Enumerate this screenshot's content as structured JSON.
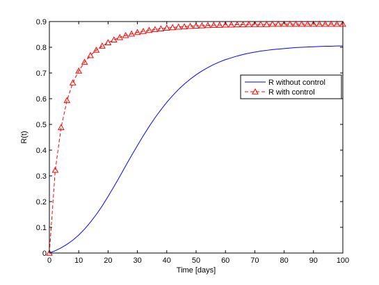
{
  "chart_data": {
    "type": "line",
    "title": "",
    "xlabel": "Time [days]",
    "ylabel": "R(t)",
    "xlim": [
      0,
      100
    ],
    "ylim": [
      0,
      0.9
    ],
    "xticks": [
      0,
      10,
      20,
      30,
      40,
      50,
      60,
      70,
      80,
      90,
      100
    ],
    "yticks": [
      0,
      0.1,
      0.2,
      0.3,
      0.4,
      0.5,
      0.6,
      0.7,
      0.8,
      0.9
    ],
    "xtick_labels": [
      "0",
      "10",
      "20",
      "30",
      "40",
      "50",
      "60",
      "70",
      "80",
      "90",
      "100"
    ],
    "ytick_labels": [
      "0",
      "0.1",
      "0.2",
      "0.3",
      "0.4",
      "0.5",
      "0.6",
      "0.7",
      "0.8",
      "0.9"
    ],
    "grid": false,
    "legend_position": "right",
    "series": [
      {
        "name": "R without control",
        "color": "#0000ff",
        "line_style": "solid",
        "marker": "none",
        "x": [
          0,
          2,
          4,
          6,
          8,
          10,
          12,
          14,
          16,
          18,
          20,
          22,
          24,
          26,
          28,
          30,
          32,
          34,
          36,
          38,
          40,
          42,
          44,
          46,
          48,
          50,
          52,
          54,
          56,
          58,
          60,
          62,
          64,
          66,
          68,
          70,
          72,
          74,
          76,
          78,
          80,
          82,
          84,
          86,
          88,
          90,
          92,
          94,
          96,
          98,
          100
        ],
        "y": [
          0,
          0.009,
          0.02,
          0.034,
          0.05,
          0.07,
          0.093,
          0.12,
          0.15,
          0.183,
          0.22,
          0.258,
          0.298,
          0.339,
          0.379,
          0.418,
          0.456,
          0.492,
          0.526,
          0.557,
          0.586,
          0.612,
          0.636,
          0.657,
          0.676,
          0.693,
          0.708,
          0.721,
          0.733,
          0.743,
          0.752,
          0.759,
          0.766,
          0.772,
          0.777,
          0.781,
          0.785,
          0.788,
          0.791,
          0.793,
          0.795,
          0.797,
          0.799,
          0.8,
          0.801,
          0.802,
          0.803,
          0.804,
          0.804,
          0.805,
          0.805
        ]
      },
      {
        "name": "R with control",
        "color": "#ff0000",
        "line_style": "dashed",
        "marker": "triangle",
        "x": [
          0,
          2,
          4,
          6,
          8,
          10,
          12,
          14,
          16,
          18,
          20,
          22,
          24,
          26,
          28,
          30,
          32,
          34,
          36,
          38,
          40,
          42,
          44,
          46,
          48,
          50,
          52,
          54,
          56,
          58,
          60,
          62,
          64,
          66,
          68,
          70,
          72,
          74,
          76,
          78,
          80,
          82,
          84,
          86,
          88,
          90,
          92,
          94,
          96,
          98,
          100
        ],
        "y": [
          0,
          0.322,
          0.488,
          0.593,
          0.662,
          0.708,
          0.742,
          0.768,
          0.789,
          0.805,
          0.818,
          0.829,
          0.838,
          0.846,
          0.852,
          0.858,
          0.862,
          0.866,
          0.869,
          0.872,
          0.875,
          0.877,
          0.879,
          0.88,
          0.882,
          0.883,
          0.884,
          0.885,
          0.886,
          0.886,
          0.887,
          0.887,
          0.888,
          0.888,
          0.889,
          0.889,
          0.889,
          0.889,
          0.89,
          0.89,
          0.89,
          0.89,
          0.89,
          0.89,
          0.89,
          0.89,
          0.89,
          0.89,
          0.89,
          0.89,
          0.89
        ]
      }
    ]
  }
}
